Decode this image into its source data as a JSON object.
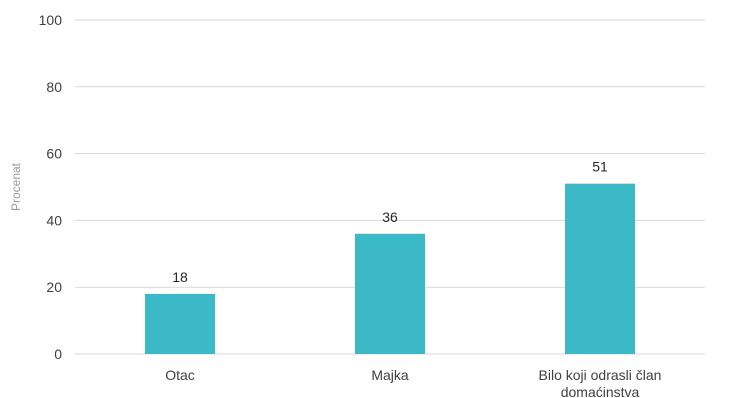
{
  "chart_data": {
    "type": "bar",
    "categories": [
      "Otac",
      "Majka",
      "Bilo koji odrasli član domaćinstva"
    ],
    "values": [
      18,
      36,
      51
    ],
    "data_labels": [
      "18",
      "36",
      "51"
    ],
    "title": "",
    "xlabel": "",
    "ylabel": "Procenat",
    "ylim": [
      0,
      100
    ],
    "yticks": [
      0,
      20,
      40,
      60,
      80,
      100
    ],
    "grid": true,
    "legend": "none",
    "bar_color": "#3bb9c6"
  }
}
